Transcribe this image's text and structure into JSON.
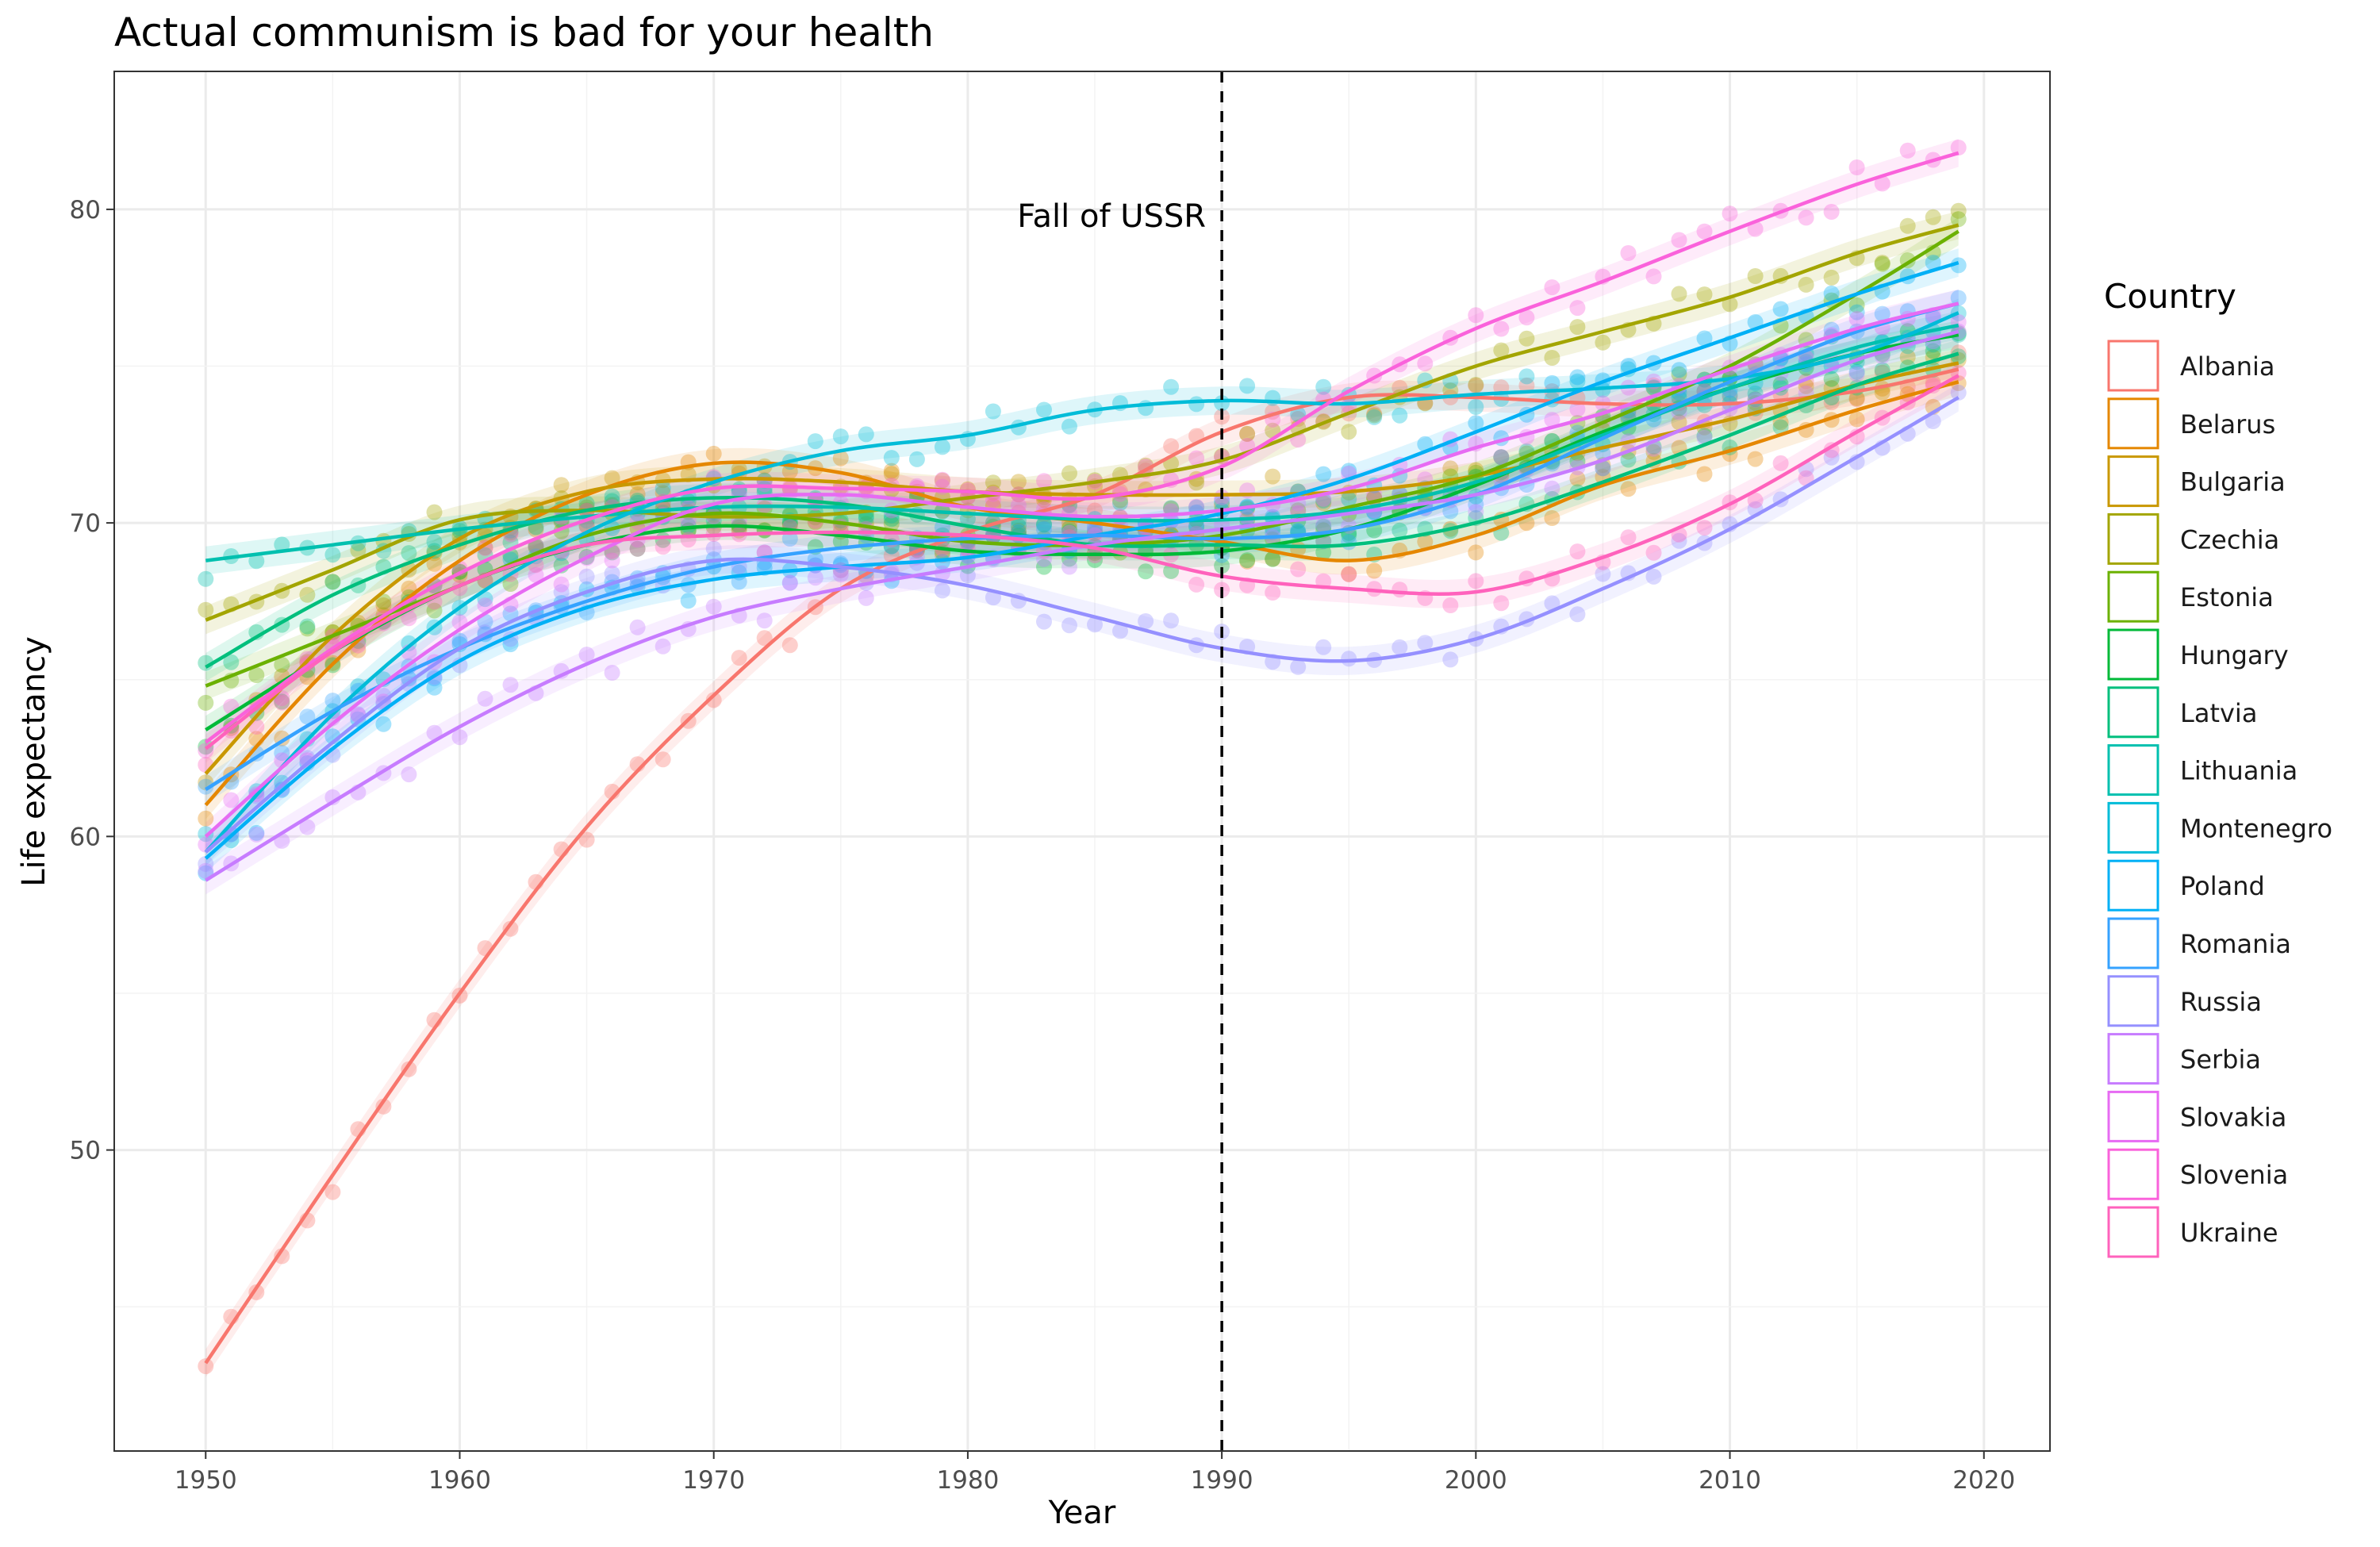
{
  "chart_data": {
    "type": "scatter",
    "title": "Actual communism is bad for your health",
    "xlabel": "Year",
    "ylabel": "Life expectancy",
    "xlim": [
      1946.4,
      2022.6
    ],
    "ylim": [
      40.4,
      84.4
    ],
    "x_ticks": [
      1950,
      1960,
      1970,
      1980,
      1990,
      2000,
      2010,
      2020
    ],
    "y_ticks": [
      50,
      60,
      70,
      80
    ],
    "grid": true,
    "legend": {
      "title": "Country",
      "position": "right"
    },
    "annotation": {
      "label": "Fall of USSR",
      "x": 1990,
      "y": 79.8,
      "line": "dashed-vertical"
    },
    "x": [
      1950,
      1955,
      1960,
      1965,
      1970,
      1975,
      1980,
      1985,
      1990,
      1995,
      2000,
      2005,
      2010,
      2015,
      2019
    ],
    "series": [
      {
        "name": "Albania",
        "color": "#F8766D",
        "values": [
          43.2,
          49.2,
          55.0,
          60.3,
          64.5,
          67.9,
          69.7,
          70.9,
          72.9,
          74.0,
          74.0,
          73.8,
          73.8,
          74.2,
          74.9
        ]
      },
      {
        "name": "Belarus",
        "color": "#E58700",
        "values": [
          61.0,
          65.5,
          68.8,
          70.9,
          71.9,
          71.6,
          70.5,
          70.0,
          69.4,
          68.8,
          69.6,
          71.2,
          72.3,
          73.6,
          74.5
        ]
      },
      {
        "name": "Bulgaria",
        "color": "#C99800",
        "values": [
          62.0,
          66.4,
          69.5,
          71.0,
          71.4,
          71.3,
          71.0,
          70.9,
          70.9,
          71.0,
          71.5,
          72.4,
          73.3,
          74.4,
          75.1
        ]
      },
      {
        "name": "Czechia",
        "color": "#A3A500",
        "values": [
          66.9,
          68.5,
          70.1,
          70.4,
          70.2,
          70.3,
          70.8,
          71.3,
          72.0,
          73.5,
          75.0,
          76.1,
          77.2,
          78.6,
          79.5
        ]
      },
      {
        "name": "Estonia",
        "color": "#6BB100",
        "values": [
          64.8,
          66.4,
          68.0,
          69.6,
          70.3,
          70.0,
          69.4,
          69.3,
          69.6,
          70.5,
          71.5,
          73.2,
          75.0,
          77.3,
          79.3
        ]
      },
      {
        "name": "Hungary",
        "color": "#00BA38",
        "values": [
          63.4,
          65.9,
          68.0,
          69.3,
          69.9,
          69.6,
          69.1,
          69.0,
          69.1,
          69.8,
          71.2,
          72.9,
          74.3,
          75.4,
          76.0
        ]
      },
      {
        "name": "Latvia",
        "color": "#00BF7D",
        "values": [
          65.4,
          67.7,
          69.3,
          70.4,
          70.8,
          70.6,
          69.9,
          69.3,
          69.3,
          69.3,
          70.0,
          71.3,
          72.8,
          74.4,
          75.4
        ]
      },
      {
        "name": "Lithuania",
        "color": "#00C0AF",
        "values": [
          68.8,
          69.3,
          69.8,
          70.2,
          70.5,
          70.5,
          70.3,
          70.1,
          70.1,
          70.4,
          71.3,
          72.8,
          74.3,
          75.6,
          76.3
        ]
      },
      {
        "name": "Montenegro",
        "color": "#00BCD8",
        "values": [
          59.5,
          63.9,
          67.3,
          69.7,
          71.3,
          72.3,
          72.8,
          73.6,
          73.9,
          73.8,
          74.1,
          74.3,
          74.6,
          75.4,
          76.7
        ]
      },
      {
        "name": "Poland",
        "color": "#00B0F6",
        "values": [
          59.3,
          62.8,
          65.6,
          67.3,
          68.2,
          68.6,
          68.9,
          69.6,
          70.3,
          71.4,
          72.9,
          74.5,
          75.9,
          77.3,
          78.3
        ]
      },
      {
        "name": "Romania",
        "color": "#35A2FF",
        "values": [
          61.5,
          64.0,
          66.0,
          67.5,
          68.6,
          69.2,
          69.5,
          69.6,
          69.5,
          69.8,
          70.9,
          72.7,
          74.5,
          76.1,
          77.0
        ]
      },
      {
        "name": "Russia",
        "color": "#9590FF",
        "values": [
          59.5,
          63.0,
          66.0,
          67.8,
          68.8,
          68.6,
          68.0,
          67.0,
          66.0,
          65.6,
          66.3,
          67.9,
          69.8,
          72.1,
          74.0
        ]
      },
      {
        "name": "Serbia",
        "color": "#C77CFF",
        "values": [
          58.6,
          61.1,
          63.5,
          65.5,
          67.0,
          67.9,
          68.6,
          69.3,
          69.8,
          70.3,
          70.9,
          72.0,
          73.6,
          75.2,
          76.1
        ]
      },
      {
        "name": "Slovakia",
        "color": "#E76BF3",
        "values": [
          60.0,
          63.6,
          66.6,
          68.9,
          70.6,
          70.9,
          70.5,
          70.2,
          70.4,
          71.1,
          72.4,
          73.5,
          74.9,
          76.2,
          77.0
        ]
      },
      {
        "name": "Slovenia",
        "color": "#FA62DB",
        "values": [
          63.0,
          66.0,
          68.4,
          70.1,
          71.1,
          71.1,
          71.0,
          70.8,
          71.8,
          74.2,
          76.2,
          77.7,
          79.3,
          80.8,
          81.8
        ]
      },
      {
        "name": "Ukraine",
        "color": "#FF62BC",
        "values": [
          62.8,
          65.9,
          68.0,
          69.3,
          69.6,
          69.7,
          69.6,
          69.2,
          68.3,
          67.9,
          67.8,
          68.9,
          70.6,
          72.9,
          74.7
        ]
      }
    ]
  }
}
